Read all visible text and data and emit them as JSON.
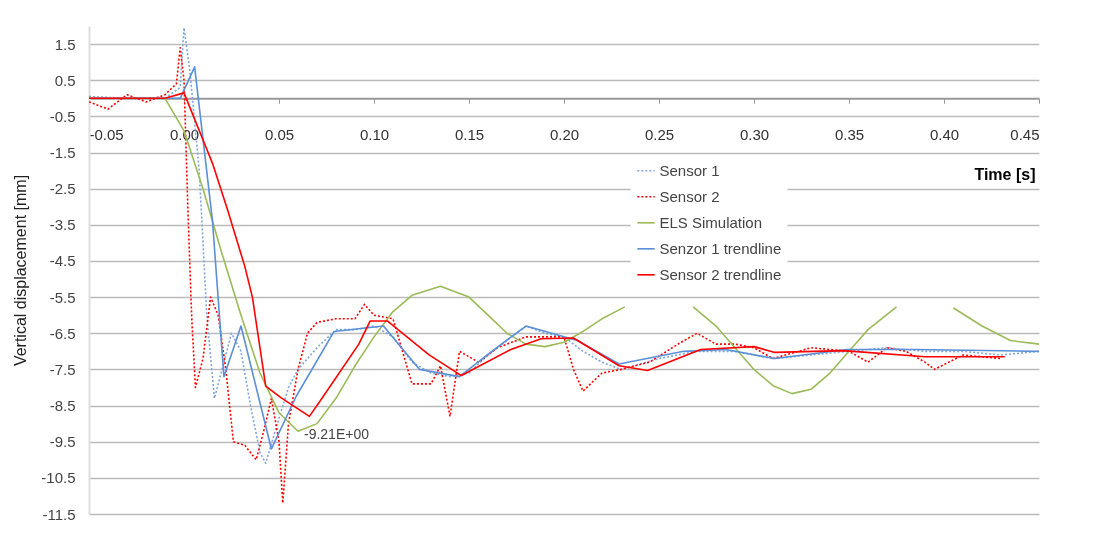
{
  "chart_data": {
    "type": "line",
    "xlabel": "Time [s]",
    "ylabel": "Vertical displacement [mm]",
    "xlim": [
      -0.05,
      0.45
    ],
    "ylim": [
      -11.5,
      2.0
    ],
    "xticks": [
      -0.05,
      {
        "value": 0,
        "label": "0.00"
      },
      0.05,
      {
        "value": 0.1,
        "label": "0.10"
      },
      0.15,
      {
        "value": 0.2,
        "label": "0.20"
      },
      0.25,
      {
        "value": 0.3,
        "label": "0.30"
      },
      0.35,
      {
        "value": 0.4,
        "label": "0.40"
      },
      0.45
    ],
    "yticks": [
      1.5,
      0.5,
      -0.5,
      -1.5,
      -2.5,
      -3.5,
      -4.5,
      -5.5,
      -6.5,
      -7.5,
      -8.5,
      -9.5,
      -10.5,
      -11.5
    ],
    "grid": "y",
    "legend": "right",
    "marker": "none",
    "annotations": [
      {
        "text": "-9.21E+00",
        "x": 0.06,
        "y": -9.21
      }
    ],
    "series": [
      {
        "name": "Sensor 1",
        "color": "#7ea6dc",
        "line_style": "dotted",
        "x": [
          -0.05,
          -0.03,
          -0.01,
          -0.002,
          0.0,
          0.003,
          0.008,
          0.012,
          0.016,
          0.02,
          0.025,
          0.03,
          0.035,
          0.04,
          0.043,
          0.048,
          0.055,
          0.06,
          0.07,
          0.08,
          0.09,
          0.1,
          0.11,
          0.12,
          0.13,
          0.14,
          0.15,
          0.16,
          0.17,
          0.18,
          0.19,
          0.2,
          0.21,
          0.22,
          0.23,
          0.25,
          0.27,
          0.29,
          0.31,
          0.33,
          0.35,
          0.37,
          0.39,
          0.41,
          0.43,
          0.45
        ],
        "values": [
          0.05,
          0,
          0,
          0.3,
          1.95,
          0.8,
          -2,
          -6,
          -8.3,
          -7.5,
          -6.5,
          -7,
          -8.5,
          -9.8,
          -10.1,
          -9.2,
          -8.0,
          -7.5,
          -6.9,
          -6.4,
          -6.4,
          -6.3,
          -6.6,
          -7.3,
          -7.6,
          -7.7,
          -7.6,
          -7.1,
          -6.7,
          -6.3,
          -6.5,
          -6.6,
          -7.0,
          -7.3,
          -7.5,
          -7.2,
          -7.0,
          -7.0,
          -7.2,
          -7.1,
          -7.0,
          -6.9,
          -7.0,
          -7.0,
          -7.1,
          -7.0
        ]
      },
      {
        "name": "Sensor 2",
        "color": "#ff0000",
        "line_style": "dotted",
        "x": [
          -0.05,
          -0.04,
          -0.03,
          -0.02,
          -0.01,
          -0.004,
          -0.002,
          0.0,
          0.002,
          0.004,
          0.006,
          0.01,
          0.014,
          0.018,
          0.022,
          0.026,
          0.032,
          0.038,
          0.042,
          0.046,
          0.05,
          0.052,
          0.055,
          0.06,
          0.065,
          0.07,
          0.08,
          0.09,
          0.095,
          0.1,
          0.11,
          0.115,
          0.12,
          0.13,
          0.135,
          0.14,
          0.145,
          0.155,
          0.165,
          0.18,
          0.19,
          0.2,
          0.205,
          0.21,
          0.22,
          0.23,
          0.245,
          0.26,
          0.27,
          0.28,
          0.29,
          0.3,
          0.31,
          0.33,
          0.35,
          0.36,
          0.37,
          0.38,
          0.39,
          0.395,
          0.41,
          0.43
        ],
        "values": [
          -0.1,
          -0.3,
          0.1,
          -0.1,
          0.1,
          0.4,
          1.4,
          0.5,
          -3,
          -6,
          -8.0,
          -7.2,
          -5.5,
          -6.0,
          -7.5,
          -9.5,
          -9.6,
          -10.0,
          -9.2,
          -8.3,
          -9.5,
          -11.2,
          -9.0,
          -7.5,
          -6.5,
          -6.2,
          -6.1,
          -6.1,
          -5.7,
          -6.0,
          -6.1,
          -7.0,
          -7.9,
          -7.9,
          -7.4,
          -8.8,
          -7.0,
          -7.3,
          -6.9,
          -6.6,
          -6.6,
          -6.6,
          -7.5,
          -8.1,
          -7.6,
          -7.5,
          -7.3,
          -6.8,
          -6.5,
          -6.8,
          -6.8,
          -6.9,
          -7.2,
          -6.9,
          -7.0,
          -7.3,
          -6.9,
          -7.0,
          -7.3,
          -7.5,
          -7.1,
          -7.2
        ]
      },
      {
        "name": "ELS Simulation",
        "color": "#9bbb59",
        "line_style": "solid",
        "x": [
          -0.05,
          -0.01,
          0.0,
          0.01,
          0.02,
          0.03,
          0.04,
          0.05,
          0.06,
          0.07,
          0.08,
          0.09,
          0.1,
          0.11,
          0.12,
          0.135,
          0.15,
          0.16,
          0.17,
          0.18,
          0.19,
          0.2,
          0.21,
          0.22,
          0.232,
          0.25,
          0.268,
          0.28,
          0.29,
          0.3,
          0.31,
          0.32,
          0.33,
          0.34,
          0.35,
          0.36,
          0.375,
          0.39,
          0.405,
          0.42,
          0.435,
          0.45
        ],
        "values": [
          0,
          0,
          -0.9,
          -2.5,
          -4.3,
          -6.0,
          -7.6,
          -8.7,
          -9.21,
          -9.0,
          -8.3,
          -7.4,
          -6.6,
          -5.9,
          -5.45,
          -5.2,
          -5.5,
          -6.0,
          -6.5,
          -6.8,
          -6.87,
          -6.75,
          -6.45,
          -6.1,
          -5.77,
          null,
          -5.77,
          -6.3,
          -6.9,
          -7.5,
          -7.95,
          -8.17,
          -8.05,
          -7.6,
          -7.0,
          -6.4,
          -5.77,
          null,
          -5.8,
          -6.3,
          -6.7,
          -6.8
        ]
      },
      {
        "name": "Senzor 1 trendline",
        "color": "#5b8fd6",
        "line_style": "solid",
        "x": [
          -0.05,
          -0.002,
          0.0056,
          0.015,
          0.021,
          0.03,
          0.046,
          0.059,
          0.079,
          0.105,
          0.124,
          0.145,
          0.162,
          0.18,
          0.207,
          0.229,
          0.263,
          0.285,
          0.311,
          0.349,
          0.385,
          0.45
        ],
        "values": [
          0,
          0,
          0.87,
          -3.4,
          -7.7,
          -6.3,
          -9.7,
          -8.25,
          -6.45,
          -6.3,
          -7.5,
          -7.7,
          -7.0,
          -6.3,
          -6.7,
          -7.35,
          -7.0,
          -6.95,
          -7.2,
          -6.95,
          -6.95,
          -7.0
        ]
      },
      {
        "name": "Sensor 2 trendline",
        "color": "#ff0000",
        "line_style": "solid",
        "x": [
          -0.05,
          -0.01,
          0.0,
          0.015,
          0.023,
          0.032,
          0.036,
          0.043,
          0.051,
          0.066,
          0.073,
          0.092,
          0.098,
          0.107,
          0.129,
          0.146,
          0.172,
          0.188,
          0.205,
          0.229,
          0.244,
          0.272,
          0.3,
          0.311,
          0.347,
          0.39,
          0.432
        ],
        "values": [
          0,
          0,
          0.15,
          -1.8,
          -3.1,
          -4.65,
          -5.5,
          -7.96,
          -8.28,
          -8.8,
          -8.27,
          -6.8,
          -6.16,
          -6.16,
          -7.1,
          -7.67,
          -6.95,
          -6.65,
          -6.63,
          -7.4,
          -7.53,
          -6.95,
          -6.87,
          -7.03,
          -6.98,
          -7.15,
          -7.15
        ]
      }
    ]
  }
}
